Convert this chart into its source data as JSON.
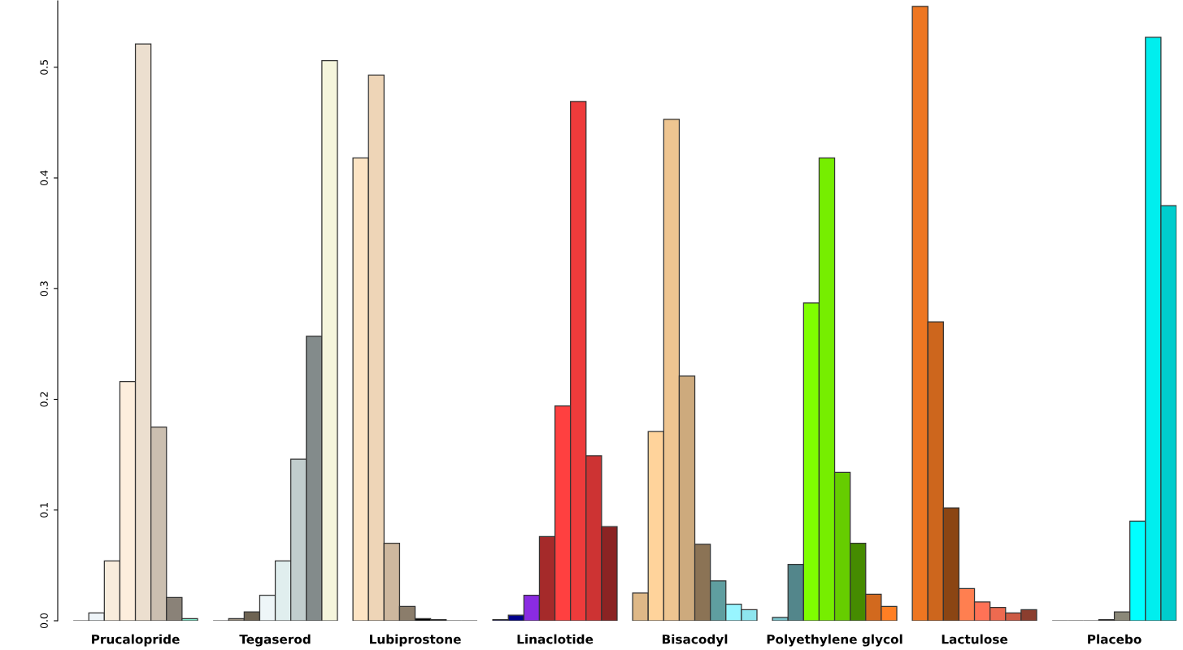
{
  "chart_data": {
    "type": "bar",
    "categories": [
      "Prucalopride",
      "Tegaserod",
      "Lubiprostone",
      "Linaclotide",
      "Bisacodyl",
      "Polyethylene glycol",
      "Lactulose",
      "Placebo"
    ],
    "series": [
      {
        "values": [
          0,
          0,
          0.418,
          0.001,
          0.025,
          0.003,
          0.555,
          0
        ],
        "colors": [
          "#333333",
          "#333333",
          "#fde4c4",
          "#3030a0",
          "#deb887",
          "#7ac5cd",
          "#ee7621",
          "#333333"
        ]
      },
      {
        "values": [
          0.007,
          0.002,
          0.493,
          0.005,
          0.171,
          0.051,
          0.27,
          0
        ],
        "colors": [
          "#eef4f8",
          "#9a9080",
          "#eed5b7",
          "#00008b",
          "#ffd39b",
          "#53868b",
          "#cd661d",
          "#333333"
        ]
      },
      {
        "values": [
          0.054,
          0.008,
          0.07,
          0.023,
          0.453,
          0.287,
          0.102,
          0
        ],
        "colors": [
          "#f8ecdc",
          "#6e6352",
          "#cdb79e",
          "#8a2be2",
          "#eec591",
          "#7fff00",
          "#8b4513",
          "#333333"
        ]
      },
      {
        "values": [
          0.216,
          0.023,
          0.013,
          0.076,
          0.221,
          0.418,
          0.029,
          0.001
        ],
        "colors": [
          "#fdeedd",
          "#eef6f8",
          "#8b7d6b",
          "#a52a2a",
          "#cdaa7d",
          "#76ee00",
          "#ff7f50",
          "#555555"
        ]
      },
      {
        "values": [
          0.521,
          0.054,
          0.002,
          0.194,
          0.069,
          0.134,
          0.017,
          0.008
        ],
        "colors": [
          "#ecdfcf",
          "#e0eeee",
          "#000000",
          "#ff4040",
          "#8b7355",
          "#66cd00",
          "#ff7256",
          "#8b8878"
        ]
      },
      {
        "values": [
          0.175,
          0.146,
          0.001,
          0.469,
          0.036,
          0.07,
          0.012,
          0.09
        ],
        "colors": [
          "#cbbfb0",
          "#c1cdcd",
          "#333333",
          "#ee3b3b",
          "#5f9ea0",
          "#458b00",
          "#ee6a50",
          "#00ffff"
        ]
      },
      {
        "values": [
          0.021,
          0.257,
          0,
          0.149,
          0.015,
          0.024,
          0.007,
          0.527
        ],
        "colors": [
          "#8a8278",
          "#838b8b",
          "#333333",
          "#cd3333",
          "#98f5ff",
          "#d2691e",
          "#cd5b45",
          "#00eeee"
        ]
      },
      {
        "values": [
          0.002,
          0.506,
          0,
          0.085,
          0.01,
          0.013,
          0.01,
          0.375
        ],
        "colors": [
          "#7fe8c8",
          "#f5f5dc",
          "#333333",
          "#8b2323",
          "#8ee5ee",
          "#ff7f24",
          "#8b3e2f",
          "#00cdcd"
        ]
      }
    ],
    "ylim": [
      0,
      0.56
    ],
    "yticks": [
      {
        "value": 0,
        "label": "0.0"
      },
      {
        "value": 0.1,
        "label": "0.1"
      },
      {
        "value": 0.2,
        "label": "0.2"
      },
      {
        "value": 0.3,
        "label": "0.3"
      },
      {
        "value": 0.4,
        "label": "0.4"
      },
      {
        "value": 0.5,
        "label": "0.5"
      }
    ],
    "grid": false,
    "legend": false
  }
}
